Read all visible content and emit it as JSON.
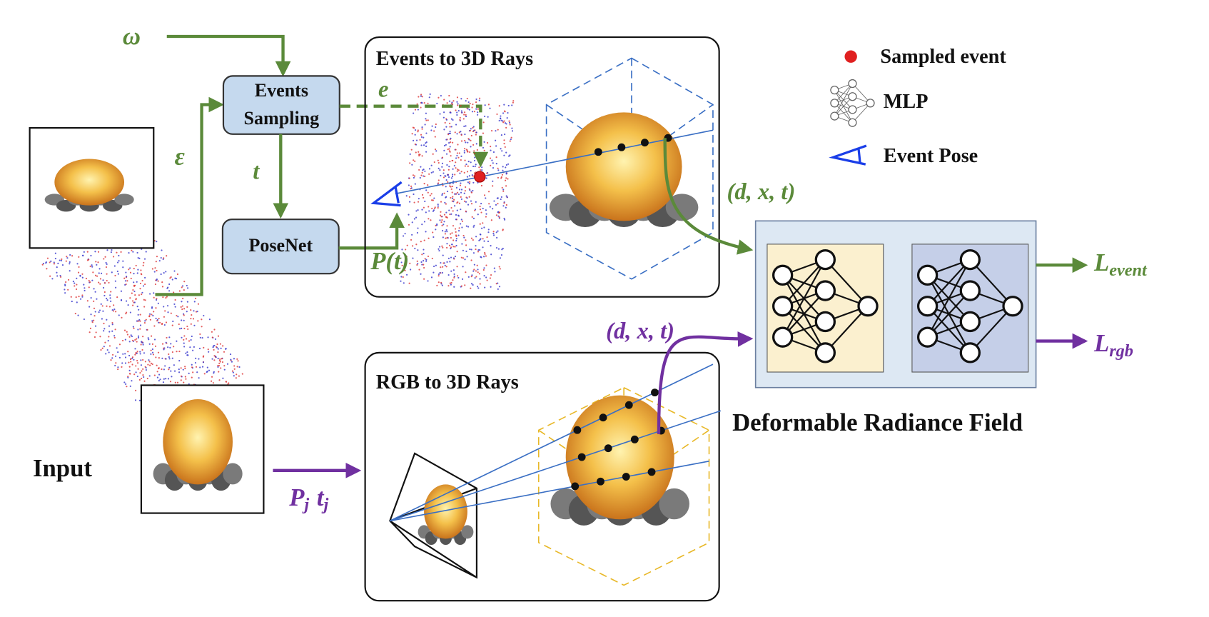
{
  "inputs": {
    "omega": "ω",
    "epsilon": "ε",
    "input_label": "Input"
  },
  "nodes": [
    {
      "label_lines": [
        "Events",
        "Sampling"
      ]
    },
    {
      "label": "PoseNet"
    }
  ],
  "edge_labels": {
    "e": "e",
    "t": "t",
    "pose": "P(t)",
    "event_query": "(d, x, t)",
    "rgb_query": "(d, x, t)"
  },
  "panels": {
    "events": "Events to 3D Rays",
    "rgb": "RGB to 3D Rays",
    "field": "Deformable Radiance Field"
  },
  "outputs": [
    {
      "symbol": "L",
      "subscript": "event"
    },
    {
      "symbol": "L",
      "subscript": "rgb"
    }
  ],
  "rgb_input": {
    "P": "P",
    "P_sub": "j",
    "t": "t",
    "t_sub": "j"
  },
  "legend": [
    "Sampled event",
    "MLP",
    "Event Pose"
  ]
}
